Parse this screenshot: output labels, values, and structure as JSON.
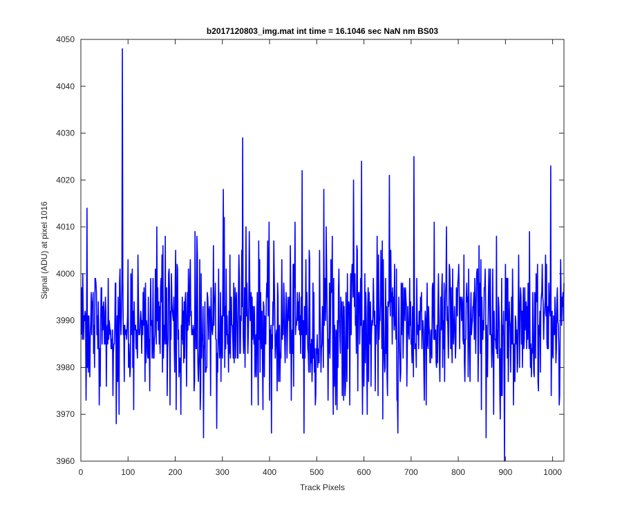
{
  "chart_data": {
    "type": "line",
    "title": "b2017120803_img.mat int time = 16.1046 sec  NaN nm BS03",
    "xlabel": "Track Pixels",
    "ylabel": "Signal (ADU) at pixel 1016",
    "xlim": [
      0,
      1024
    ],
    "ylim": [
      3960,
      4050
    ],
    "xticks": [
      0,
      100,
      200,
      300,
      400,
      500,
      600,
      700,
      800,
      900,
      1000
    ],
    "yticks": [
      3960,
      3970,
      3980,
      3990,
      4000,
      4010,
      4020,
      4030,
      4040,
      4050
    ],
    "grid": false,
    "line_color": "#0000ff",
    "series": [
      {
        "num_points": 1024,
        "x_start": 1,
        "x_step": 1,
        "baseline": 3989,
        "std_dev": 8,
        "peaks": [
          {
            "x": 88,
            "y": 4048
          },
          {
            "x": 343,
            "y": 4029
          },
          {
            "x": 706,
            "y": 4025
          },
          {
            "x": 595,
            "y": 4024
          },
          {
            "x": 996,
            "y": 4023
          },
          {
            "x": 469,
            "y": 4022
          },
          {
            "x": 654,
            "y": 4021
          },
          {
            "x": 578,
            "y": 4020
          },
          {
            "x": 302,
            "y": 4018
          },
          {
            "x": 515,
            "y": 4018
          },
          {
            "x": 13,
            "y": 4014
          },
          {
            "x": 898,
            "y": 3960
          },
          {
            "x": 260,
            "y": 3965
          },
          {
            "x": 473,
            "y": 3966
          },
          {
            "x": 672,
            "y": 3966
          },
          {
            "x": 404,
            "y": 3966
          },
          {
            "x": 859,
            "y": 3965
          },
          {
            "x": 75,
            "y": 3968
          },
          {
            "x": 288,
            "y": 3967
          }
        ]
      }
    ]
  }
}
